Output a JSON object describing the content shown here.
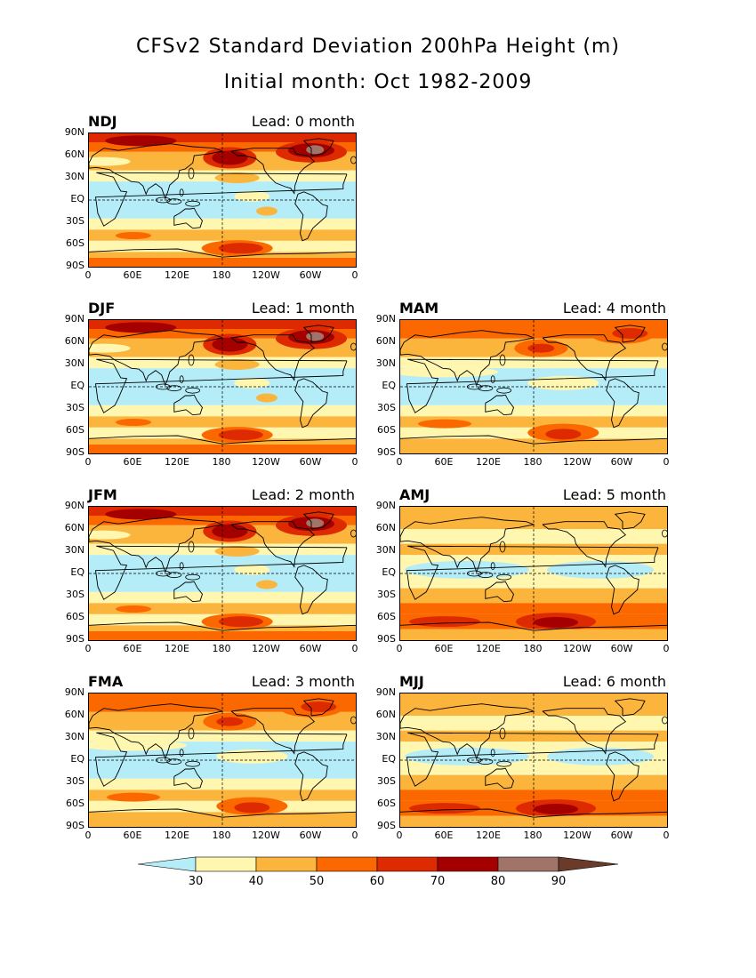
{
  "title_line1": "CFSv2 Standard Deviation 200hPa Height (m)",
  "title_line2": "Initial month: Oct 1982-2009",
  "lat_labels": [
    "90N",
    "60N",
    "30N",
    "EQ",
    "30S",
    "60S",
    "90S"
  ],
  "lon_labels": [
    "0",
    "60E",
    "120E",
    "180",
    "120W",
    "60W",
    "0"
  ],
  "panels": [
    {
      "season": "NDJ",
      "lead": "Lead: 0 month"
    },
    {
      "season": "DJF",
      "lead": "Lead: 1 month"
    },
    {
      "season": "MAM",
      "lead": "Lead: 4 month"
    },
    {
      "season": "JFM",
      "lead": "Lead: 2 month"
    },
    {
      "season": "AMJ",
      "lead": "Lead: 5 month"
    },
    {
      "season": "FMA",
      "lead": "Lead: 3 month"
    },
    {
      "season": "MJJ",
      "lead": "Lead: 6 month"
    }
  ],
  "colorbar": {
    "labels": [
      "30",
      "40",
      "50",
      "60",
      "70",
      "80",
      "90"
    ],
    "colors": {
      "below": "#b4ecf8",
      "c30_40": "#fff7b0",
      "c40_50": "#fbb43c",
      "c50_60": "#fb6800",
      "c60_70": "#de2a00",
      "c70_80": "#a40000",
      "c80_90": "#a07468",
      "above": "#6a3a2a"
    }
  }
}
